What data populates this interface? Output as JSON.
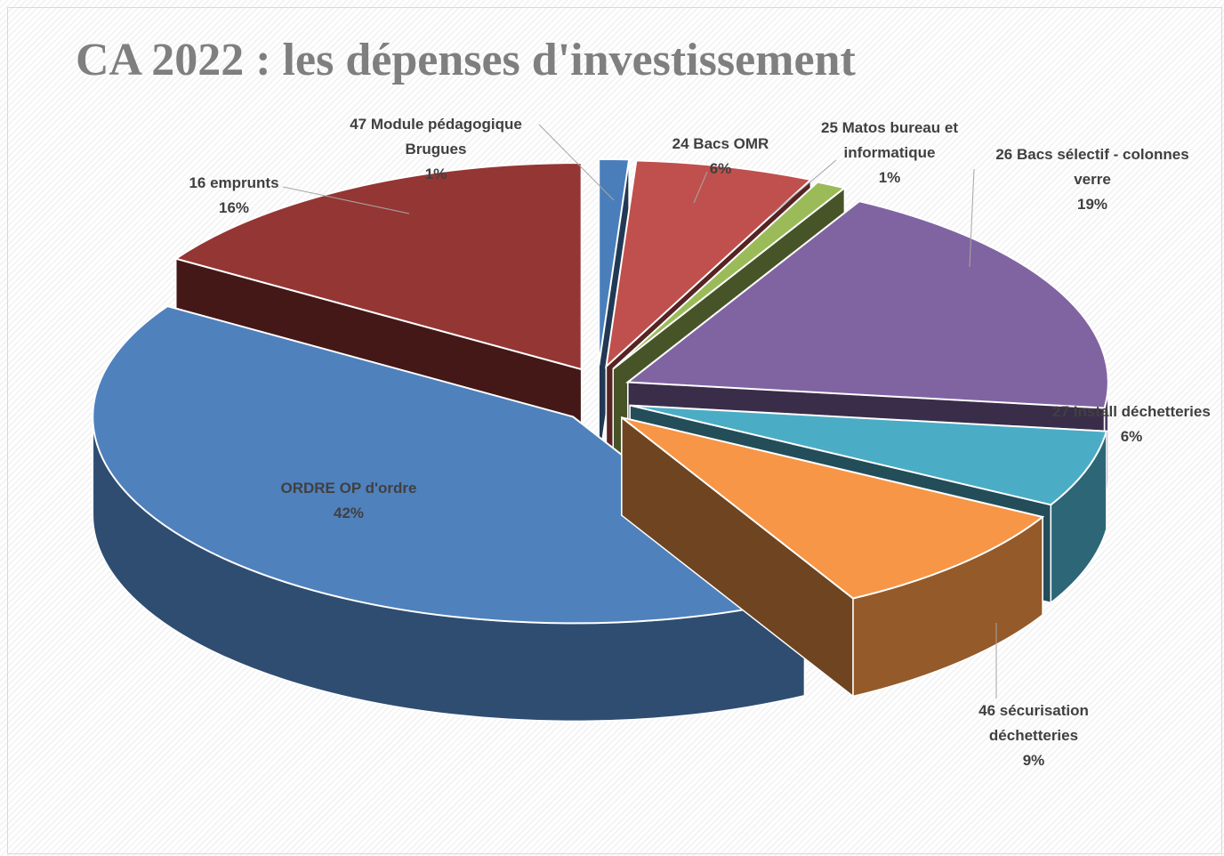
{
  "chart_data": {
    "type": "pie3d",
    "title": "CA 2022 : les dépenses d'investissement",
    "categories": [
      "47 Module pédagogique Brugues",
      "24 Bacs OMR",
      "25 Matos bureau et informatique",
      "26 Bacs sélectif - colonnes verre",
      "27 Install déchetteries",
      "46 sécurisation déchetteries",
      "ORDRE OP d'ordre",
      "16 emprunts"
    ],
    "values": [
      1,
      6,
      1,
      19,
      6,
      9,
      42,
      16
    ],
    "value_labels": [
      "1%",
      "6%",
      "1%",
      "19%",
      "6%",
      "9%",
      "42%",
      "16%"
    ],
    "colors": [
      "#4a7ebb",
      "#c0504d",
      "#9bbb59",
      "#8064a2",
      "#4bacc6",
      "#f79646",
      "#4f81bd",
      "#943634"
    ],
    "exploded": true
  }
}
